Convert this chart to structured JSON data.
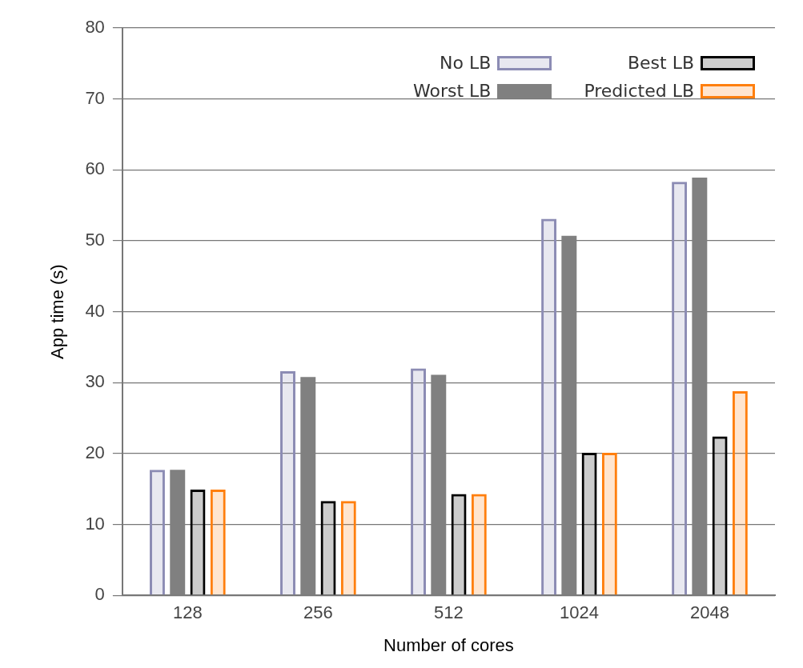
{
  "chart_data": {
    "type": "bar",
    "xlabel": "Number of cores",
    "ylabel": "App time (s)",
    "categories": [
      "128",
      "256",
      "512",
      "1024",
      "2048"
    ],
    "series": [
      {
        "name": "No LB",
        "color": "#8c8cb4",
        "values": [
          17.7,
          31.6,
          32.0,
          53.1,
          58.3
        ]
      },
      {
        "name": "Worst LB",
        "color": "#808080",
        "values": [
          17.7,
          30.8,
          31.1,
          50.7,
          58.9
        ]
      },
      {
        "name": "Best LB",
        "color": "#000000",
        "values": [
          14.9,
          13.3,
          14.3,
          20.1,
          22.4
        ]
      },
      {
        "name": "Predicted LB",
        "color": "#ff7f0e",
        "values": [
          14.9,
          13.3,
          14.3,
          20.1,
          28.8
        ]
      }
    ],
    "ylim": [
      0,
      80
    ],
    "yticks": [
      0,
      10,
      20,
      30,
      40,
      50,
      60,
      70,
      80
    ],
    "grid": "y",
    "legend": "top right"
  }
}
